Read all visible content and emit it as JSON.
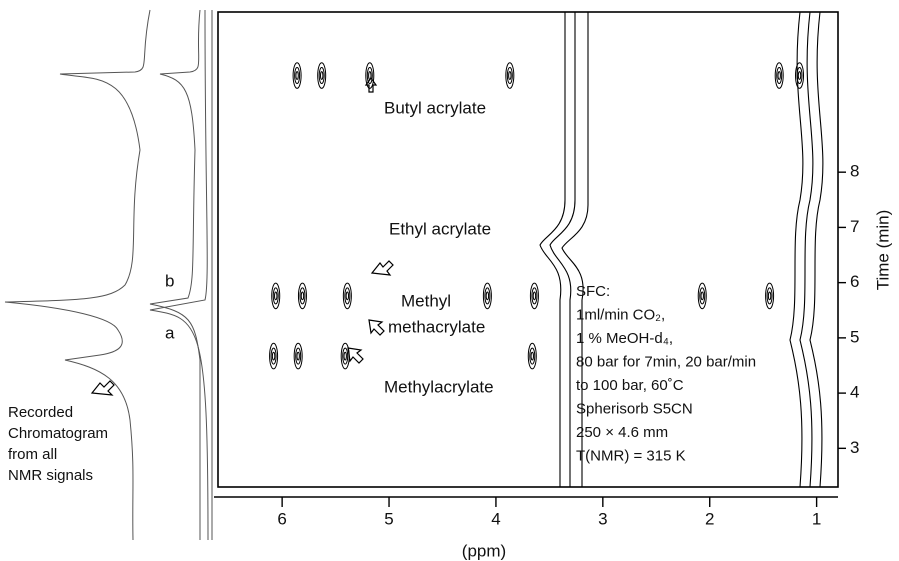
{
  "chart_data": {
    "type": "scatter",
    "xlabel": "(ppm)",
    "ylabel": "Time (min)",
    "xlim": [
      6.6,
      0.8
    ],
    "xticks": [
      6,
      5,
      4,
      3,
      2,
      1
    ],
    "ylim": [
      2.3,
      10.9
    ],
    "yticks": [
      3,
      4,
      5,
      6,
      7,
      8
    ],
    "color": "#000000",
    "x": [
      5.86,
      5.63,
      5.18,
      3.87,
      1.35,
      1.16,
      6.06,
      5.81,
      5.39,
      4.08,
      3.64,
      2.07,
      1.44,
      6.08,
      5.85,
      5.41,
      3.66
    ],
    "values": [
      9.75,
      9.75,
      9.75,
      9.75,
      9.75,
      9.75,
      5.76,
      5.76,
      5.76,
      5.76,
      5.76,
      5.76,
      5.76,
      4.67,
      4.67,
      4.67,
      4.67
    ],
    "annotations": [
      "Butyl acrylate",
      "Ethyl acrylate",
      "Methyl",
      "methacrylate",
      "Methylacrylate"
    ],
    "sfc_lines": [
      "SFC:",
      "1ml/min CO₂,",
      "1 % MeOH-d₄,",
      "80 bar for 7min, 20 bar/min",
      "to 100 bar, 60˚C",
      "Spherisorb S5CN",
      "250 × 4.6 mm",
      "T(NMR) = 315 K"
    ],
    "chromatogram_labels": [
      "Recorded",
      "Chromatogram",
      "from all",
      "NMR signals"
    ],
    "trace_labels": [
      "b",
      "a"
    ]
  }
}
